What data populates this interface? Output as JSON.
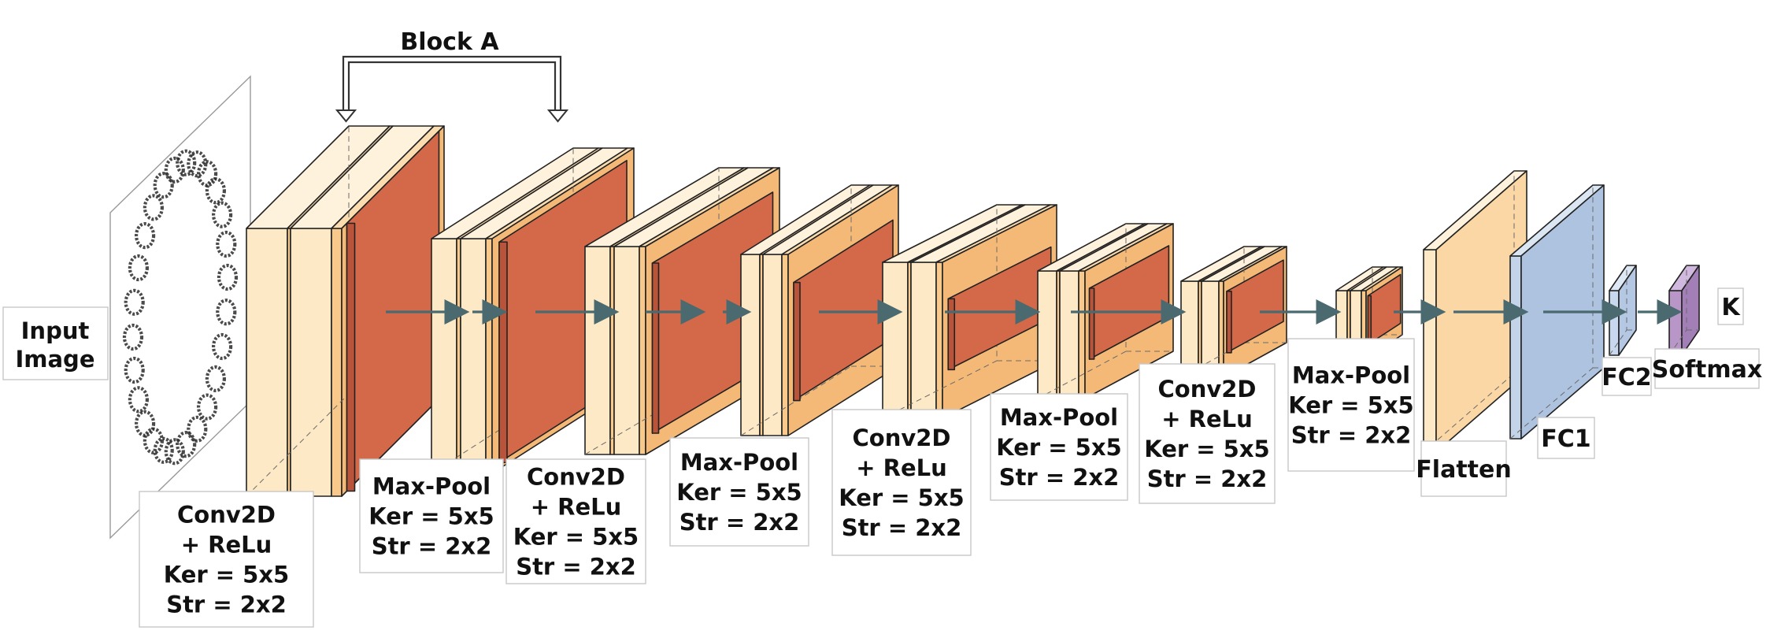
{
  "diagram": {
    "block_label": "Block A",
    "input_label": [
      "Input",
      "Image"
    ],
    "output_label": "K",
    "colors": {
      "light": "#fde9c6",
      "mid": "#f8c98b",
      "dark": "#d4694a",
      "side_light": "#fad7a4",
      "top_light": "#fff2dc",
      "fc1": "#c3d4e8",
      "fc2": "#c8d8ee",
      "softmax": "#b897c8",
      "arrow": "#4a6a70"
    },
    "stages": [
      {
        "id": "conv1",
        "type": "conv",
        "label": [
          "Conv2D",
          "+ ReLu",
          "Ker = 5x5",
          "Str = 2x2"
        ]
      },
      {
        "id": "pool1",
        "type": "pool",
        "label": [
          "Max-Pool",
          "Ker = 5x5",
          "Str = 2x2"
        ]
      },
      {
        "id": "conv2",
        "type": "conv",
        "label": [
          "Conv2D",
          "+ ReLu",
          "Ker = 5x5",
          "Str = 2x2"
        ]
      },
      {
        "id": "pool2",
        "type": "pool",
        "label": [
          "Max-Pool",
          "Ker = 5x5",
          "Str = 2x2"
        ]
      },
      {
        "id": "conv3",
        "type": "conv",
        "label": [
          "Conv2D",
          "+ ReLu",
          "Ker = 5x5",
          "Str = 2x2"
        ]
      },
      {
        "id": "pool3",
        "type": "pool",
        "label": [
          "Max-Pool",
          "Ker = 5x5",
          "Str = 2x2"
        ]
      },
      {
        "id": "conv4",
        "type": "conv",
        "label": [
          "Conv2D",
          "+ ReLu",
          "Ker = 5x5",
          "Str = 2x2"
        ]
      },
      {
        "id": "pool4",
        "type": "pool",
        "label": [
          "Max-Pool",
          "Ker = 5x5",
          "Str = 2x2"
        ]
      },
      {
        "id": "flatten",
        "type": "flatten",
        "label": [
          "Flatten"
        ]
      },
      {
        "id": "fc1",
        "type": "fc",
        "label": [
          "FC1"
        ]
      },
      {
        "id": "fc2",
        "type": "fc",
        "label": [
          "FC2"
        ]
      },
      {
        "id": "softmax",
        "type": "softmax",
        "label": [
          "Softmax"
        ]
      }
    ]
  }
}
